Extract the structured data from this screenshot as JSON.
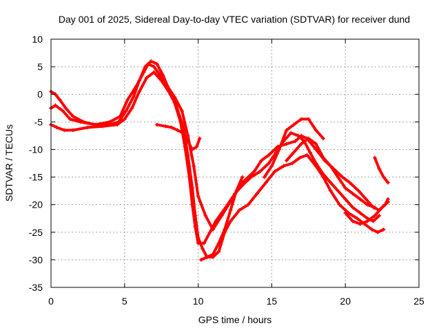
{
  "chart_data": {
    "type": "scatter",
    "title": "Day 001 of 2025, Sidereal Day-to-day VTEC variation (SDTVAR) for receiver dund",
    "xlabel": "GPS time / hours",
    "ylabel": "SDTVAR / TECUs",
    "xlim": [
      0,
      25
    ],
    "ylim": [
      -35,
      10
    ],
    "xticks": [
      0,
      5,
      10,
      15,
      20,
      25
    ],
    "yticks": [
      10,
      5,
      0,
      -5,
      -10,
      -15,
      -20,
      -25,
      -30,
      -35
    ],
    "grid": true,
    "color": "#ff0000",
    "marker": "+",
    "series": [
      {
        "name": "s1",
        "x": [
          0,
          0.3,
          0.8,
          1.3,
          2.0,
          3.0,
          4.0,
          4.7,
          5.2,
          5.8,
          6.3,
          6.6,
          7.0,
          7.4,
          7.9,
          8.4,
          8.9,
          9.3,
          9.7,
          10.0,
          10.5,
          11.0,
          11.6,
          12.3,
          13.0,
          13.8,
          14.3,
          14.8,
          15.4,
          16.0,
          16.6,
          17.0,
          17.4,
          18.0,
          18.6,
          19.2,
          19.8,
          20.3,
          20.9,
          21.4,
          21.9,
          22.3,
          22.7,
          22.9
        ],
        "y": [
          -2.5,
          -2.0,
          -3.0,
          -4.5,
          -5.0,
          -5.5,
          -5.0,
          -4.0,
          -1.0,
          1.5,
          4.0,
          5.5,
          5.0,
          3.5,
          1.5,
          -0.5,
          -3.0,
          -7.5,
          -13.0,
          -18.5,
          -22.0,
          -24.5,
          -22.0,
          -19.0,
          -16.0,
          -14.0,
          -12.0,
          -11.0,
          -9.5,
          -9.0,
          -8.5,
          -7.5,
          -8.0,
          -10.0,
          -12.0,
          -13.5,
          -15.0,
          -16.0,
          -17.5,
          -19.0,
          -20.5,
          -21.0,
          -20.0,
          -19.0
        ]
      },
      {
        "name": "s2",
        "x": [
          0,
          0.4,
          0.9,
          1.5,
          2.5,
          3.5,
          4.5,
          5.0,
          5.5,
          6.0,
          6.5,
          7.0,
          7.5,
          8.0,
          8.5,
          9.0,
          9.3,
          9.6,
          9.8,
          10.0,
          10.3,
          10.6,
          11.0,
          11.4,
          11.8,
          12.2,
          12.8,
          13.4,
          14.0,
          14.6,
          15.2,
          15.8,
          16.4,
          16.9,
          17.4,
          18.0,
          18.5,
          19.0,
          19.6,
          20.2,
          20.8,
          21.3,
          21.8,
          22.2,
          22.6
        ],
        "y": [
          -5.5,
          -6.0,
          -6.5,
          -6.5,
          -6.0,
          -5.8,
          -5.5,
          -4.5,
          -2.5,
          0.5,
          3.0,
          4.0,
          2.5,
          0.5,
          -2.0,
          -6.0,
          -11.0,
          -17.0,
          -22.0,
          -26.0,
          -28.0,
          -29.5,
          -29.5,
          -28.5,
          -25.0,
          -23.0,
          -21.0,
          -20.0,
          -18.0,
          -16.0,
          -14.0,
          -13.0,
          -12.5,
          -11.5,
          -11.0,
          -13.0,
          -15.0,
          -17.5,
          -20.0,
          -21.5,
          -22.5,
          -23.5,
          -24.5,
          -25.0,
          -24.5
        ]
      },
      {
        "name": "s3",
        "x": [
          0,
          0.3,
          0.6,
          1.0,
          1.5,
          2.2,
          3.0,
          4.0,
          4.6,
          5.1,
          5.6,
          6.0,
          6.4,
          6.8,
          7.2,
          7.6,
          8.0,
          8.4,
          8.8,
          9.1,
          9.4,
          9.6,
          9.8,
          10.0,
          10.4,
          10.8,
          11.2,
          11.6,
          12.0,
          12.5,
          13.0,
          13.6,
          14.2,
          14.8,
          15.3,
          15.8,
          16.3,
          16.8,
          17.2,
          17.6,
          18.0,
          18.5,
          19.0,
          19.5,
          20.0,
          20.5,
          21.0,
          21.5,
          21.9,
          22.3
        ],
        "y": [
          0.5,
          0.0,
          -1.0,
          -2.5,
          -4.0,
          -5.0,
          -5.5,
          -5.5,
          -5.0,
          -3.0,
          -0.5,
          2.5,
          5.0,
          6.0,
          5.5,
          3.5,
          1.0,
          -1.5,
          -5.0,
          -9.5,
          -15.0,
          -20.0,
          -24.0,
          -27.0,
          -27.0,
          -25.0,
          -23.0,
          -21.5,
          -20.0,
          -18.0,
          -16.5,
          -15.0,
          -14.0,
          -12.5,
          -10.5,
          -8.5,
          -7.0,
          -7.5,
          -8.5,
          -10.5,
          -12.5,
          -14.5,
          -16.0,
          -17.5,
          -19.0,
          -20.5,
          -21.5,
          -22.5,
          -23.0,
          -22.0
        ]
      },
      {
        "name": "s4",
        "x": [
          7.2,
          7.8,
          8.2,
          8.6,
          9.0,
          9.3,
          9.6,
          9.9,
          10.1
        ],
        "y": [
          -5.5,
          -5.8,
          -6.0,
          -6.5,
          -7.0,
          -8.5,
          -10.0,
          -9.5,
          -8.0
        ]
      },
      {
        "name": "s5",
        "x": [
          10.2,
          10.6,
          11.0,
          11.4,
          11.8,
          12.2,
          12.6,
          13.0
        ],
        "y": [
          -30.0,
          -29.5,
          -29.0,
          -27.0,
          -24.5,
          -21.0,
          -17.5,
          -15.0
        ]
      },
      {
        "name": "s6",
        "x": [
          14.5,
          15.0,
          15.5,
          16.0,
          16.5,
          17.0,
          17.5,
          18.0,
          18.5
        ],
        "y": [
          -15.0,
          -13.0,
          -10.0,
          -6.5,
          -5.5,
          -4.5,
          -4.5,
          -6.5,
          -8.0
        ]
      },
      {
        "name": "s7",
        "x": [
          20.0,
          20.5,
          21.0,
          21.5,
          22.0,
          22.5,
          22.9
        ],
        "y": [
          -21.5,
          -23.0,
          -23.5,
          -23.0,
          -22.0,
          -20.5,
          -19.5
        ]
      },
      {
        "name": "s8",
        "x": [
          22.0,
          22.3,
          22.6,
          22.9
        ],
        "y": [
          -11.5,
          -13.5,
          -15.0,
          -16.0
        ]
      },
      {
        "name": "s9",
        "x": [
          16.0,
          16.5,
          17.0,
          17.5,
          18.0,
          18.5,
          19.0,
          19.5,
          20.0,
          20.5,
          21.0,
          21.5,
          22.0
        ],
        "y": [
          -12.0,
          -10.5,
          -9.0,
          -8.0,
          -9.0,
          -11.5,
          -13.0,
          -15.0,
          -17.0,
          -18.0,
          -19.0,
          -20.0,
          -20.5
        ]
      }
    ]
  }
}
